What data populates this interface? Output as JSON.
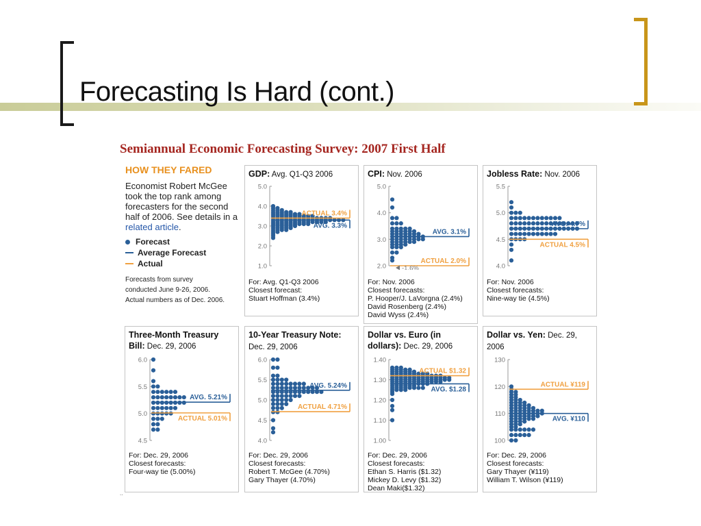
{
  "slide": {
    "title": "Forecasting Is Hard (cont.)"
  },
  "survey": {
    "title": "Semiannual Economic Forecasting Survey: 2007 First Half",
    "intro": {
      "heading": "HOW THEY FARED",
      "body": "Economist Robert McGee took the top rank among forecasters for the second half of 2006. See details in a",
      "link": "related article",
      "tail": ".",
      "legend": {
        "forecast": "Forecast",
        "average": "Average Forecast",
        "actual": "Actual"
      },
      "note1": "Forecasts from survey",
      "note2": "conducted June 9-26, 2006.",
      "note3": "Actual numbers as of Dec. 2006."
    },
    "colors": {
      "dot": "#2a5f98",
      "avg": "#2a5f98",
      "actual": "#f0a040",
      "axis": "#9a9a9a",
      "tick": "#777777"
    }
  },
  "chart_data": [
    {
      "type": "scatter",
      "title": "GDP:",
      "subtitle": "Avg. Q1-Q3 2006",
      "ylim": [
        1.0,
        5.0
      ],
      "ticks": [
        "1.0",
        "2.0",
        "3.0",
        "4.0",
        "5.0"
      ],
      "tickValues": [
        1.0,
        2.0,
        3.0,
        4.0,
        5.0
      ],
      "bins": [
        {
          "y": 4.0,
          "n": 1
        },
        {
          "y": 3.9,
          "n": 2
        },
        {
          "y": 3.8,
          "n": 3
        },
        {
          "y": 3.7,
          "n": 5
        },
        {
          "y": 3.6,
          "n": 7
        },
        {
          "y": 3.5,
          "n": 10
        },
        {
          "y": 3.4,
          "n": 14
        },
        {
          "y": 3.3,
          "n": 17
        },
        {
          "y": 3.2,
          "n": 13
        },
        {
          "y": 3.1,
          "n": 9
        },
        {
          "y": 3.0,
          "n": 6
        },
        {
          "y": 2.9,
          "n": 5
        },
        {
          "y": 2.8,
          "n": 4
        },
        {
          "y": 2.7,
          "n": 2
        },
        {
          "y": 2.6,
          "n": 1
        },
        {
          "y": 2.5,
          "n": 1
        },
        {
          "y": 2.4,
          "n": 1
        }
      ],
      "average": 3.3,
      "actual": 3.4,
      "avg_label": "AVG. 3.3%",
      "actual_label": "ACTUAL 3.4%",
      "footer": [
        "For: Avg. Q1-Q3 2006",
        "Closest forecast:",
        "Stuart Hoffman (3.4%)"
      ]
    },
    {
      "type": "scatter",
      "title": "CPI:",
      "subtitle": "Nov. 2006",
      "ylim": [
        2.0,
        5.0
      ],
      "ticks": [
        "2.0",
        "3.0",
        "4.0",
        "5.0"
      ],
      "tickValues": [
        2.0,
        3.0,
        4.0,
        5.0
      ],
      "bins": [
        {
          "y": 4.5,
          "n": 1
        },
        {
          "y": 4.2,
          "n": 1
        },
        {
          "y": 3.8,
          "n": 2
        },
        {
          "y": 3.6,
          "n": 3
        },
        {
          "y": 3.4,
          "n": 5
        },
        {
          "y": 3.3,
          "n": 6
        },
        {
          "y": 3.2,
          "n": 7
        },
        {
          "y": 3.1,
          "n": 8
        },
        {
          "y": 3.0,
          "n": 8
        },
        {
          "y": 2.9,
          "n": 6
        },
        {
          "y": 2.8,
          "n": 4
        },
        {
          "y": 2.7,
          "n": 3
        },
        {
          "y": 2.5,
          "n": 2
        },
        {
          "y": 2.3,
          "n": 1
        },
        {
          "y": 2.2,
          "n": 1
        }
      ],
      "average": 3.1,
      "actual": 2.0,
      "avg_label": "AVG. 3.1%",
      "actual_label": "ACTUAL 2.0%",
      "extra_label": "-1.6%",
      "footer": [
        "For: Nov. 2006",
        "Closest forecasts:",
        "P. Hooper/J. LaVorgna (2.4%)",
        "David Rosenberg (2.4%)",
        "David Wyss (2.4%)"
      ]
    },
    {
      "type": "scatter",
      "title": "Jobless Rate:",
      "subtitle": "Nov. 2006",
      "ylim": [
        4.0,
        5.5
      ],
      "ticks": [
        "4.0",
        "4.5",
        "5.0",
        "5.5"
      ],
      "tickValues": [
        4.0,
        4.5,
        5.0,
        5.5
      ],
      "bins": [
        {
          "y": 5.2,
          "n": 1
        },
        {
          "y": 5.1,
          "n": 1
        },
        {
          "y": 5.0,
          "n": 3
        },
        {
          "y": 4.9,
          "n": 12
        },
        {
          "y": 4.8,
          "n": 16
        },
        {
          "y": 4.7,
          "n": 16
        },
        {
          "y": 4.6,
          "n": 11
        },
        {
          "y": 4.5,
          "n": 4
        },
        {
          "y": 4.4,
          "n": 1
        },
        {
          "y": 4.3,
          "n": 1
        },
        {
          "y": 4.1,
          "n": 1
        }
      ],
      "average": 4.7,
      "actual": 4.5,
      "avg_label": "AVG. 4.7%",
      "actual_label": "ACTUAL 4.5%",
      "footer": [
        "For: Nov. 2006",
        "Closest forecasts:",
        "Nine-way tie (4.5%)"
      ]
    },
    {
      "type": "scatter",
      "title": "Three-Month Treasury Bill:",
      "subtitle": "Dec. 29, 2006",
      "ylim": [
        4.5,
        6.0
      ],
      "ticks": [
        "4.5",
        "5.0",
        "5.5",
        "6.0"
      ],
      "tickValues": [
        4.5,
        5.0,
        5.5,
        6.0
      ],
      "bins": [
        {
          "y": 6.0,
          "n": 1
        },
        {
          "y": 5.8,
          "n": 1
        },
        {
          "y": 5.6,
          "n": 1
        },
        {
          "y": 5.5,
          "n": 2
        },
        {
          "y": 5.4,
          "n": 6
        },
        {
          "y": 5.3,
          "n": 8
        },
        {
          "y": 5.2,
          "n": 8
        },
        {
          "y": 5.1,
          "n": 6
        },
        {
          "y": 5.0,
          "n": 5
        },
        {
          "y": 4.9,
          "n": 3
        },
        {
          "y": 4.8,
          "n": 2
        },
        {
          "y": 4.7,
          "n": 2
        }
      ],
      "average": 5.21,
      "actual": 5.01,
      "avg_label": "AVG. 5.21%",
      "actual_label": "ACTUAL 5.01%",
      "footer": [
        "For: Dec. 29, 2006",
        "Closest forecasts:",
        "Four-way tie (5.00%)"
      ]
    },
    {
      "type": "scatter",
      "title": "10-Year Treasury Note:",
      "subtitle": "Dec. 29, 2006",
      "ylim": [
        4.0,
        6.0
      ],
      "ticks": [
        "4.0",
        "4.5",
        "5.0",
        "5.5",
        "6.0"
      ],
      "tickValues": [
        4.0,
        4.5,
        5.0,
        5.5,
        6.0
      ],
      "bins": [
        {
          "y": 6.0,
          "n": 2
        },
        {
          "y": 5.8,
          "n": 2
        },
        {
          "y": 5.6,
          "n": 2
        },
        {
          "y": 5.5,
          "n": 4
        },
        {
          "y": 5.4,
          "n": 8
        },
        {
          "y": 5.3,
          "n": 11
        },
        {
          "y": 5.2,
          "n": 12
        },
        {
          "y": 5.1,
          "n": 7
        },
        {
          "y": 5.0,
          "n": 5
        },
        {
          "y": 4.9,
          "n": 4
        },
        {
          "y": 4.8,
          "n": 3
        },
        {
          "y": 4.7,
          "n": 2
        },
        {
          "y": 4.5,
          "n": 1
        },
        {
          "y": 4.3,
          "n": 1
        },
        {
          "y": 4.2,
          "n": 1
        }
      ],
      "average": 5.24,
      "actual": 4.71,
      "avg_label": "AVG. 5.24%",
      "actual_label": "ACTUAL 4.71%",
      "footer": [
        "For: Dec. 29, 2006",
        "Closest forecasts:",
        "Robert T. McGee (4.70%)",
        "Gary Thayer (4.70%)"
      ]
    },
    {
      "type": "scatter",
      "title": "Dollar vs. Euro (in dollars):",
      "subtitle": "Dec. 29, 2006",
      "ylim": [
        1.0,
        1.4
      ],
      "ticks": [
        "1.00",
        "1.10",
        "1.20",
        "1.30",
        "1.40"
      ],
      "tickValues": [
        1.0,
        1.1,
        1.2,
        1.3,
        1.4
      ],
      "bins": [
        {
          "y": 1.36,
          "n": 3
        },
        {
          "y": 1.35,
          "n": 5
        },
        {
          "y": 1.34,
          "n": 6
        },
        {
          "y": 1.33,
          "n": 9
        },
        {
          "y": 1.32,
          "n": 12
        },
        {
          "y": 1.31,
          "n": 14
        },
        {
          "y": 1.3,
          "n": 14
        },
        {
          "y": 1.29,
          "n": 12
        },
        {
          "y": 1.28,
          "n": 9
        },
        {
          "y": 1.27,
          "n": 6
        },
        {
          "y": 1.26,
          "n": 8
        },
        {
          "y": 1.25,
          "n": 4
        },
        {
          "y": 1.24,
          "n": 1
        },
        {
          "y": 1.23,
          "n": 1
        },
        {
          "y": 1.2,
          "n": 1
        },
        {
          "y": 1.17,
          "n": 1
        },
        {
          "y": 1.15,
          "n": 1
        },
        {
          "y": 1.1,
          "n": 1
        }
      ],
      "average": 1.28,
      "actual": 1.32,
      "avg_label": "AVG. $1.28",
      "actual_label": "ACTUAL $1.32",
      "footer": [
        "For: Dec. 29, 2006",
        "Closest forecasts:",
        "Ethan S. Harris ($1.32)",
        "Mickey D. Levy ($1.32)",
        "Dean Maki($1.32)"
      ]
    },
    {
      "type": "scatter",
      "title": "Dollar vs. Yen:",
      "subtitle": "Dec. 29, 2006",
      "ylim": [
        100,
        130
      ],
      "ticks": [
        "100",
        "110",
        "120",
        "130"
      ],
      "tickValues": [
        100,
        110,
        120,
        130
      ],
      "bins": [
        {
          "y": 120,
          "n": 1
        },
        {
          "y": 119,
          "n": 1
        },
        {
          "y": 118,
          "n": 2
        },
        {
          "y": 117,
          "n": 2
        },
        {
          "y": 116,
          "n": 2
        },
        {
          "y": 115,
          "n": 3
        },
        {
          "y": 114,
          "n": 4
        },
        {
          "y": 113,
          "n": 5
        },
        {
          "y": 112,
          "n": 6
        },
        {
          "y": 111,
          "n": 8
        },
        {
          "y": 110,
          "n": 8
        },
        {
          "y": 109,
          "n": 7
        },
        {
          "y": 108,
          "n": 6
        },
        {
          "y": 107,
          "n": 4
        },
        {
          "y": 106,
          "n": 3
        },
        {
          "y": 105,
          "n": 2
        },
        {
          "y": 104,
          "n": 6
        },
        {
          "y": 102,
          "n": 5
        },
        {
          "y": 100,
          "n": 2
        }
      ],
      "average": 110,
      "actual": 119,
      "avg_label": "AVG. ¥110",
      "actual_label": "ACTUAL ¥119",
      "footer": [
        "For: Dec. 29, 2006",
        "Closest forecasts:",
        "Gary Thayer (¥119)",
        "William T. Wilson (¥119)"
      ]
    }
  ]
}
